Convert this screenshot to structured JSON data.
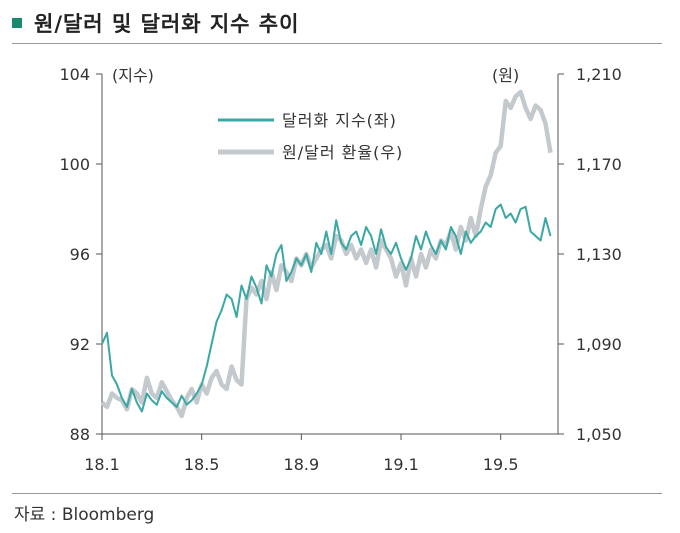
{
  "title": "원/달러 및 달러화 지수 추이",
  "source": "자료 : Bloomberg",
  "chart_data": {
    "type": "line",
    "left_axis": {
      "unit_label": "(지수)",
      "ticks": [
        "104",
        "100",
        "96",
        "92",
        "88"
      ],
      "tick_values": [
        104,
        100,
        96,
        92,
        88
      ],
      "range": [
        88,
        104
      ]
    },
    "right_axis": {
      "unit_label": "(원)",
      "ticks": [
        "1,210",
        "1,170",
        "1,130",
        "1,090",
        "1,050"
      ],
      "tick_values": [
        1210,
        1170,
        1130,
        1090,
        1050
      ],
      "range": [
        1050,
        1210
      ]
    },
    "x_ticks": [
      "18.1",
      "18.5",
      "18.9",
      "19.1",
      "19.5"
    ],
    "x_tick_positions": [
      0,
      4,
      8,
      12,
      16
    ],
    "x_range": [
      0,
      18.3
    ],
    "legend": [
      "달러화 지수(좌)",
      "원/달러 환율(우)"
    ],
    "colors": {
      "dollar_index": "#3aa8a4",
      "krw_usd": "#c4c9cd"
    },
    "series": [
      {
        "name": "달러화 지수(좌)",
        "axis": "left",
        "x": [
          0,
          0.2,
          0.4,
          0.6,
          0.8,
          1.0,
          1.2,
          1.4,
          1.6,
          1.8,
          2.0,
          2.2,
          2.4,
          2.6,
          2.8,
          3.0,
          3.2,
          3.4,
          3.6,
          3.8,
          4.0,
          4.2,
          4.4,
          4.6,
          4.8,
          5.0,
          5.2,
          5.4,
          5.6,
          5.8,
          6.0,
          6.2,
          6.4,
          6.6,
          6.8,
          7.0,
          7.2,
          7.4,
          7.6,
          7.8,
          8.0,
          8.2,
          8.4,
          8.6,
          8.8,
          9.0,
          9.2,
          9.4,
          9.6,
          9.8,
          10.0,
          10.2,
          10.4,
          10.6,
          10.8,
          11.0,
          11.2,
          11.4,
          11.6,
          11.8,
          12.0,
          12.2,
          12.4,
          12.6,
          12.8,
          13.0,
          13.2,
          13.4,
          13.6,
          13.8,
          14.0,
          14.2,
          14.4,
          14.6,
          14.8,
          15.0,
          15.2,
          15.4,
          15.6,
          15.8,
          16.0,
          16.2,
          16.4,
          16.6,
          16.8,
          17.0,
          17.2,
          17.4,
          17.6,
          17.8,
          18.0
        ],
        "values": [
          92.0,
          92.5,
          90.6,
          90.2,
          89.6,
          89.2,
          90.0,
          89.4,
          89.0,
          89.8,
          89.5,
          89.3,
          89.9,
          89.6,
          89.4,
          89.2,
          89.7,
          89.3,
          89.5,
          89.8,
          90.2,
          91.0,
          92.0,
          93.0,
          93.5,
          94.2,
          94.0,
          93.2,
          94.6,
          94.0,
          95.0,
          94.5,
          93.8,
          95.5,
          95.0,
          96.0,
          96.4,
          94.8,
          95.2,
          95.8,
          95.5,
          96.0,
          95.2,
          96.5,
          96.0,
          97.0,
          96.0,
          97.5,
          96.5,
          96.2,
          96.8,
          97.0,
          96.4,
          97.2,
          96.8,
          96.0,
          97.1,
          96.3,
          96.0,
          96.5,
          95.8,
          95.3,
          95.8,
          96.8,
          96.2,
          97.0,
          96.4,
          96.0,
          96.6,
          96.2,
          97.2,
          96.8,
          96.0,
          97.0,
          96.5,
          96.8,
          97.0,
          97.4,
          97.2,
          98.0,
          98.2,
          97.6,
          97.8,
          97.4,
          98.0,
          98.1,
          97.0,
          96.8,
          96.6,
          97.6,
          96.8
        ]
      },
      {
        "name": "원/달러 환율(우)",
        "axis": "right",
        "x": [
          0,
          0.2,
          0.4,
          0.6,
          0.8,
          1.0,
          1.2,
          1.4,
          1.6,
          1.8,
          2.0,
          2.2,
          2.4,
          2.6,
          2.8,
          3.0,
          3.2,
          3.4,
          3.6,
          3.8,
          4.0,
          4.2,
          4.4,
          4.6,
          4.8,
          5.0,
          5.2,
          5.4,
          5.6,
          5.8,
          6.0,
          6.2,
          6.4,
          6.6,
          6.8,
          7.0,
          7.2,
          7.4,
          7.6,
          7.8,
          8.0,
          8.2,
          8.4,
          8.6,
          8.8,
          9.0,
          9.2,
          9.4,
          9.6,
          9.8,
          10.0,
          10.2,
          10.4,
          10.6,
          10.8,
          11.0,
          11.2,
          11.4,
          11.6,
          11.8,
          12.0,
          12.2,
          12.4,
          12.6,
          12.8,
          13.0,
          13.2,
          13.4,
          13.6,
          13.8,
          14.0,
          14.2,
          14.4,
          14.6,
          14.8,
          15.0,
          15.2,
          15.4,
          15.6,
          15.8,
          16.0,
          16.2,
          16.4,
          16.6,
          16.8,
          17.0,
          17.2,
          17.4,
          17.6,
          17.8,
          18.0
        ],
        "values": [
          1064,
          1062,
          1068,
          1066,
          1065,
          1061,
          1070,
          1068,
          1064,
          1075,
          1068,
          1066,
          1073,
          1069,
          1065,
          1062,
          1058,
          1066,
          1070,
          1064,
          1072,
          1068,
          1075,
          1078,
          1072,
          1070,
          1080,
          1074,
          1072,
          1110,
          1115,
          1112,
          1118,
          1110,
          1122,
          1114,
          1125,
          1122,
          1118,
          1128,
          1125,
          1130,
          1124,
          1128,
          1132,
          1134,
          1128,
          1138,
          1136,
          1130,
          1134,
          1128,
          1132,
          1126,
          1132,
          1124,
          1136,
          1132,
          1128,
          1120,
          1126,
          1116,
          1128,
          1120,
          1130,
          1124,
          1132,
          1128,
          1136,
          1134,
          1140,
          1132,
          1142,
          1136,
          1146,
          1138,
          1150,
          1160,
          1165,
          1175,
          1178,
          1198,
          1195,
          1200,
          1202,
          1195,
          1190,
          1196,
          1194,
          1188,
          1175
        ]
      }
    ]
  }
}
